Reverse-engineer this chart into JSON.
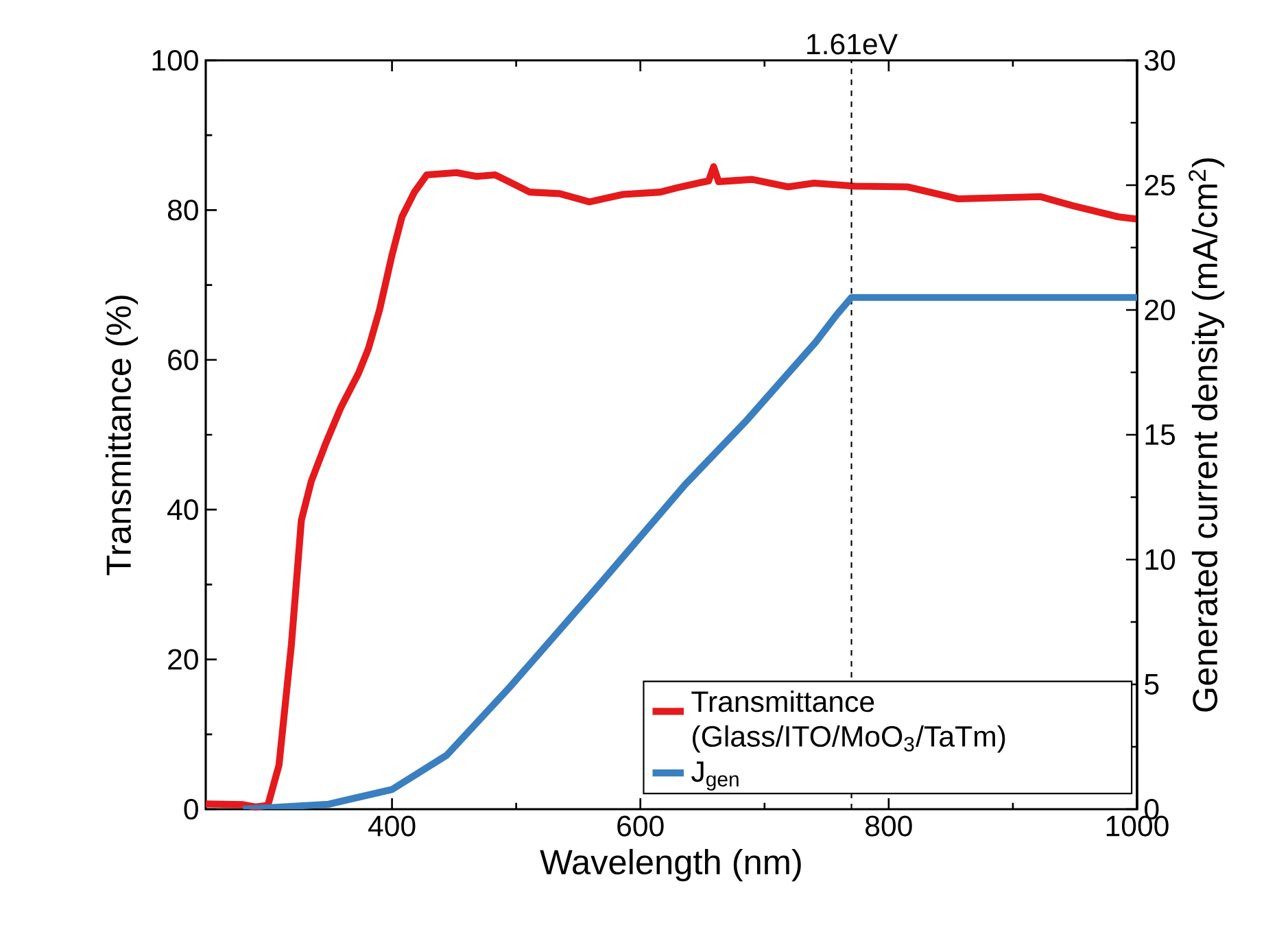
{
  "chart_data": {
    "type": "line",
    "xlabel": "Wavelength (nm)",
    "ylabel": "Transmittance (%)",
    "y2label": "Generated current density (mA/cm$^{2}$)",
    "xlim": [
      250,
      1000
    ],
    "ylim": [
      0,
      100
    ],
    "y2lim": [
      0,
      30
    ],
    "xticks": [
      400,
      600,
      800,
      1000
    ],
    "yticks": [
      0,
      20,
      40,
      60,
      80,
      100
    ],
    "y2ticks": [
      0,
      5,
      10,
      15,
      20,
      25,
      30
    ],
    "legend": "bottom right",
    "ref_lines": [
      {
        "axis": "x",
        "value": 770,
        "label": "1.61eV",
        "line_style": "dashed",
        "color": "#000000"
      }
    ],
    "series": [
      {
        "name": "Transmittance (Glass/ITO/MoO$_{3}$/TaTm)",
        "color": "#e41a1c",
        "x": [
          250,
          280,
          290,
          300,
          309,
          319,
          327,
          335,
          347,
          359,
          373,
          381,
          390,
          400,
          408,
          418,
          428,
          452,
          468,
          483,
          499,
          511,
          535,
          559,
          586,
          616,
          630,
          649,
          655,
          659,
          663,
          690,
          719,
          740,
          773,
          815,
          856,
          922,
          948,
          985,
          1000
        ],
        "values": [
          0.7,
          0.6,
          0.3,
          0.5,
          5.9,
          22,
          38.6,
          43.8,
          49,
          53.7,
          58.2,
          61.5,
          66.7,
          74,
          79.1,
          82.4,
          84.7,
          85,
          84.5,
          84.7,
          83.4,
          82.4,
          82.2,
          81.1,
          82.1,
          82.4,
          83,
          83.7,
          83.9,
          85.8,
          83.8,
          84.1,
          83.1,
          83.6,
          83.2,
          83.1,
          81.5,
          81.8,
          80.6,
          79.1,
          78.8
        ]
      },
      {
        "name": "J$_{gen}$",
        "color": "#3a7fbf",
        "axis": "y2",
        "x": [
          280,
          349,
          400,
          444,
          495,
          567,
          636,
          686,
          741,
          758,
          770,
          1000
        ],
        "values": [
          0,
          0.2,
          0.79,
          2.16,
          4.9,
          9.0,
          13,
          15.6,
          18.7,
          19.8,
          20.5,
          20.5
        ]
      }
    ]
  }
}
